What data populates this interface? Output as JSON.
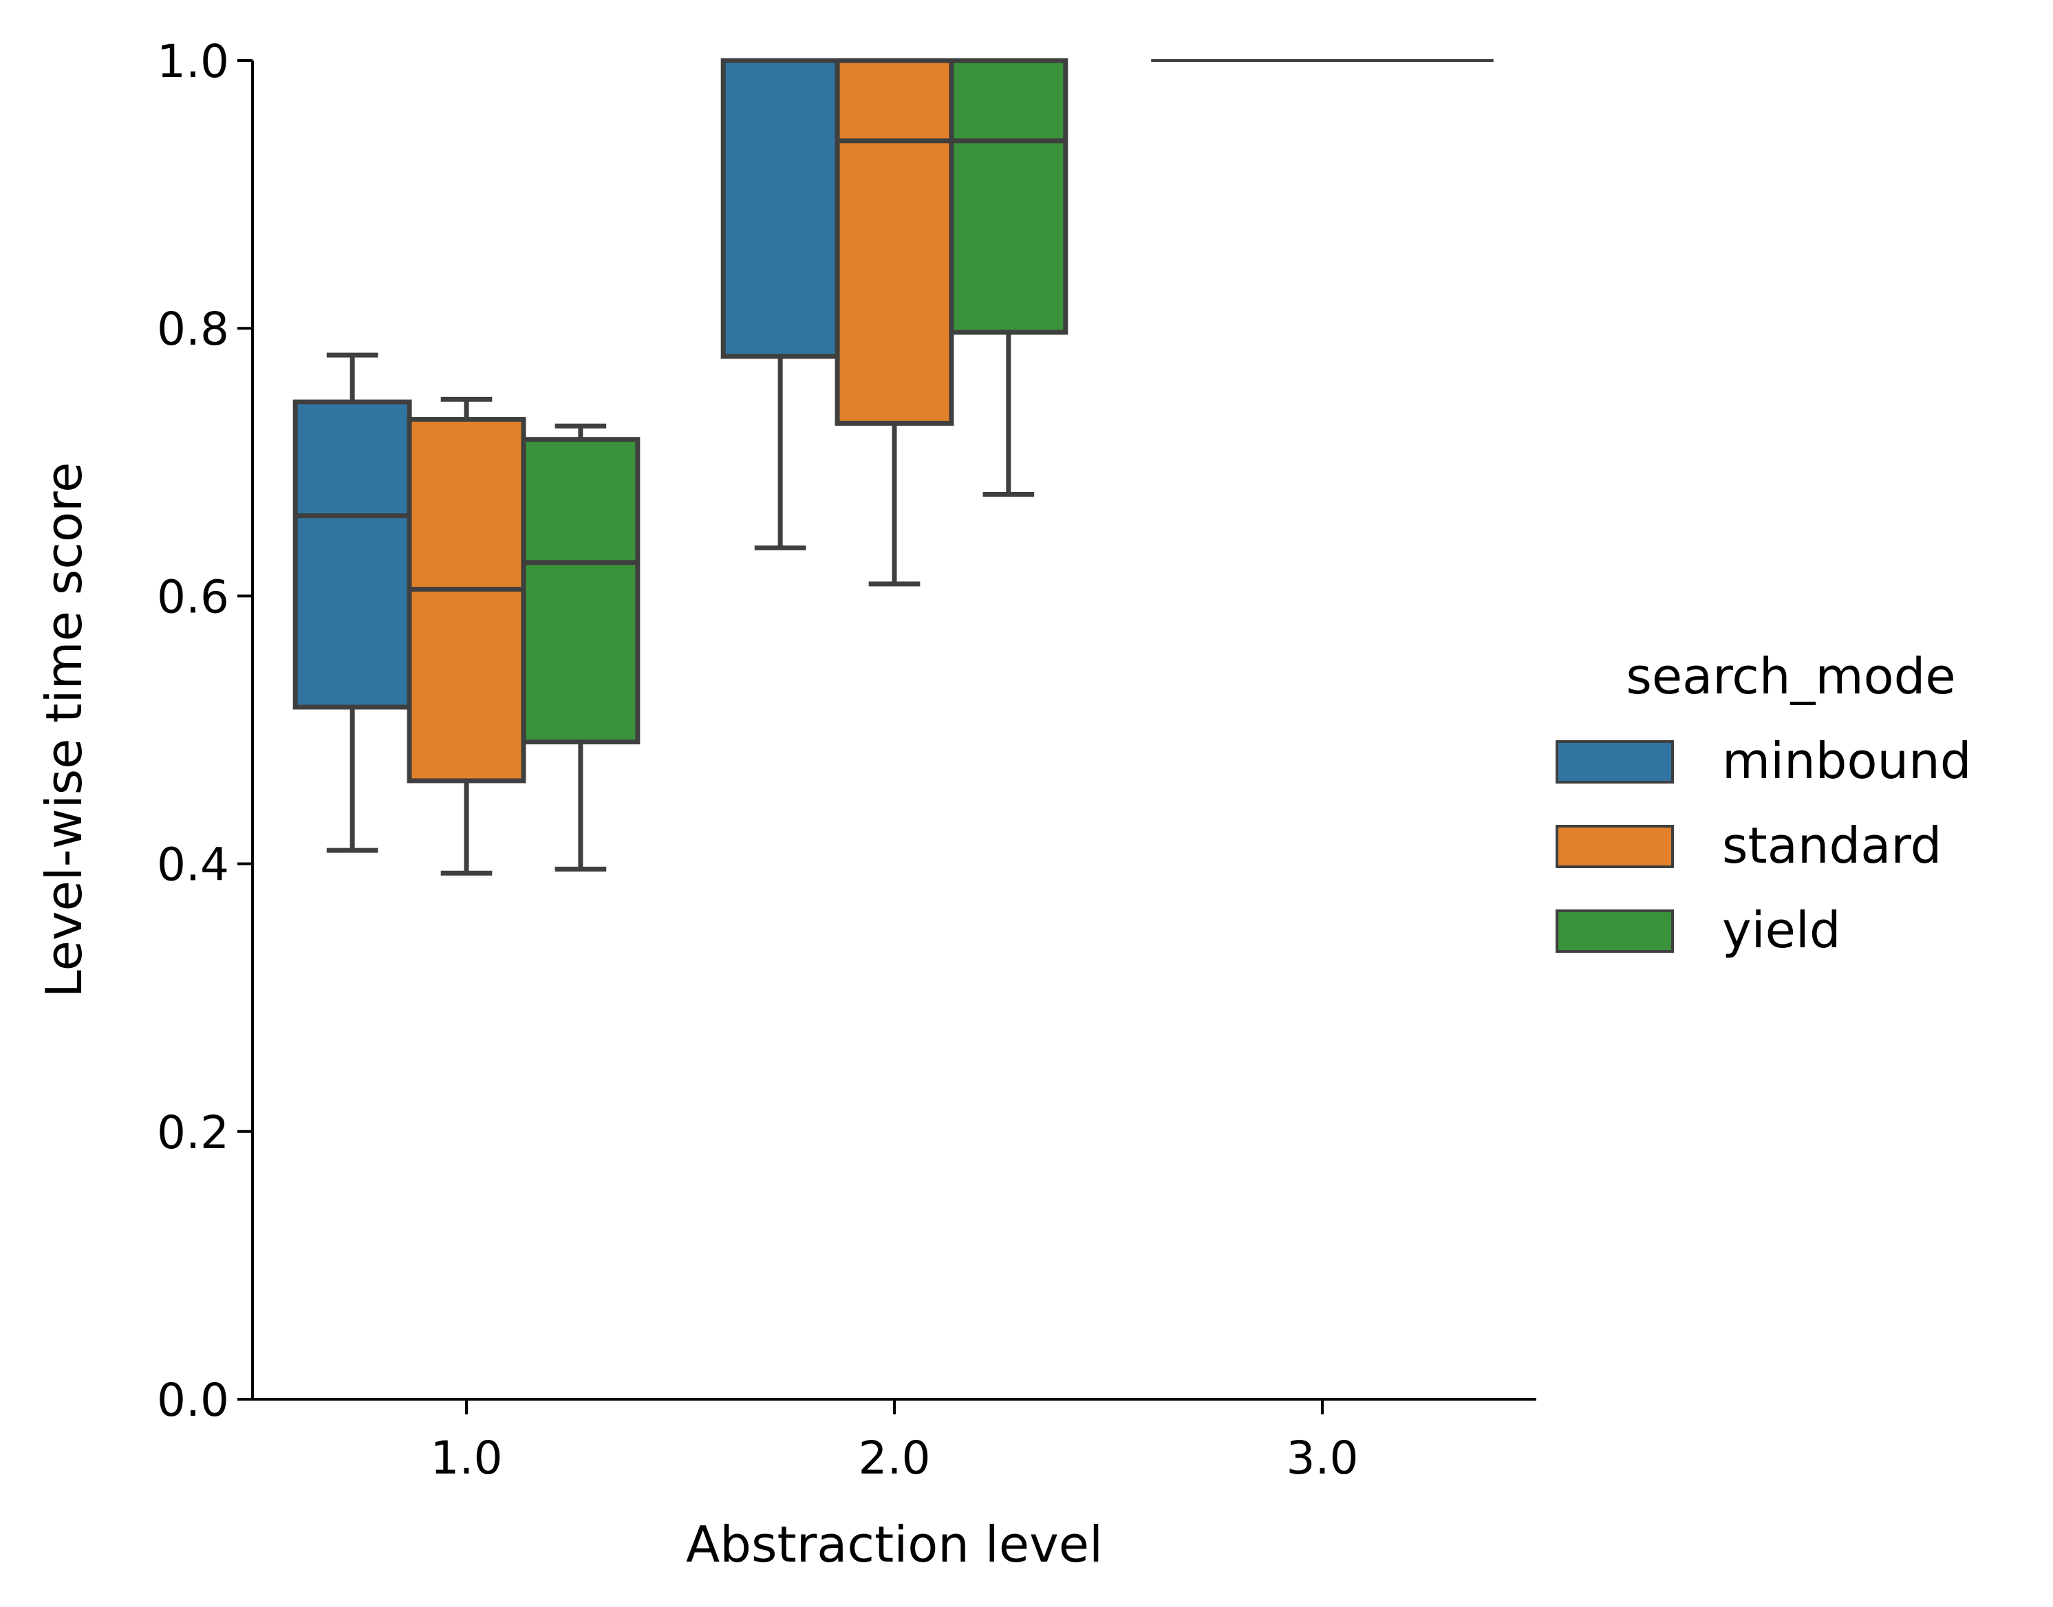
{
  "chart_data": {
    "type": "box",
    "xlabel": "Abstraction level",
    "ylabel": "Level-wise time score",
    "ylim": [
      0,
      1
    ],
    "y_ticks": [
      "0.0",
      "0.2",
      "0.4",
      "0.6",
      "0.8",
      "1.0"
    ],
    "categories": [
      "1.0",
      "2.0",
      "3.0"
    ],
    "legend": {
      "title": "search_mode",
      "placement": "right",
      "entries": [
        "minbound",
        "standard",
        "yield"
      ]
    },
    "box_edge_color": "#3f3f3f",
    "series": [
      {
        "name": "minbound",
        "color": "#3274a1",
        "boxes": [
          {
            "category": "1.0",
            "whisker_low": 0.41,
            "q1": 0.517,
            "median": 0.66,
            "q3": 0.745,
            "whisker_high": 0.78
          },
          {
            "category": "2.0",
            "whisker_low": 0.636,
            "q1": 0.779,
            "median": 1.0,
            "q3": 1.0,
            "whisker_high": 1.0
          },
          {
            "category": "3.0",
            "whisker_low": 1.0,
            "q1": 1.0,
            "median": 1.0,
            "q3": 1.0,
            "whisker_high": 1.0
          }
        ]
      },
      {
        "name": "standard",
        "color": "#e1812c",
        "boxes": [
          {
            "category": "1.0",
            "whisker_low": 0.393,
            "q1": 0.462,
            "median": 0.605,
            "q3": 0.732,
            "whisker_high": 0.747
          },
          {
            "category": "2.0",
            "whisker_low": 0.609,
            "q1": 0.729,
            "median": 0.94,
            "q3": 1.0,
            "whisker_high": 1.0
          },
          {
            "category": "3.0",
            "whisker_low": 1.0,
            "q1": 1.0,
            "median": 1.0,
            "q3": 1.0,
            "whisker_high": 1.0
          }
        ]
      },
      {
        "name": "yield",
        "color": "#3a923a",
        "boxes": [
          {
            "category": "1.0",
            "whisker_low": 0.396,
            "q1": 0.491,
            "median": 0.625,
            "q3": 0.717,
            "whisker_high": 0.727
          },
          {
            "category": "2.0",
            "whisker_low": 0.676,
            "q1": 0.797,
            "median": 0.94,
            "q3": 1.0,
            "whisker_high": 1.0
          },
          {
            "category": "3.0",
            "whisker_low": 1.0,
            "q1": 1.0,
            "median": 1.0,
            "q3": 1.0,
            "whisker_high": 1.0
          }
        ]
      }
    ]
  }
}
